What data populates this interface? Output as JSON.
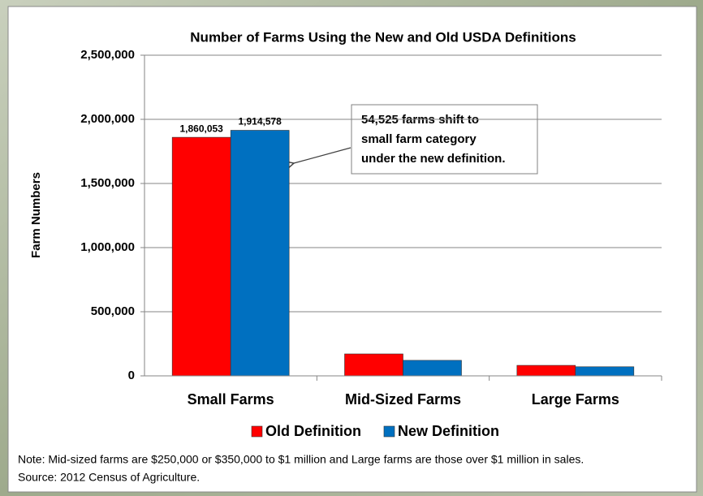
{
  "chart_data": {
    "type": "bar",
    "title": "Number of Farms Using the New and Old USDA Definitions",
    "y_label": "Farm Numbers",
    "categories": [
      "Small Farms",
      "Mid-Sized Farms",
      "Large Farms"
    ],
    "series": [
      {
        "name": "Old Definition",
        "color": "#ff0000",
        "values": [
          1860053,
          171000,
          82000
        ],
        "value_labels": [
          "1,860,053",
          null,
          null
        ]
      },
      {
        "name": "New Definition",
        "color": "#0070c0",
        "values": [
          1914578,
          121000,
          71000
        ],
        "value_labels": [
          "1,914,578",
          null,
          null
        ]
      }
    ],
    "ylim": [
      0,
      2500000
    ],
    "yticks": [
      {
        "value": 0,
        "label": "0"
      },
      {
        "value": 500000,
        "label": "500,000"
      },
      {
        "value": 1000000,
        "label": "1,000,000"
      },
      {
        "value": 1500000,
        "label": "1,500,000"
      },
      {
        "value": 2000000,
        "label": "2,000,000"
      },
      {
        "value": 2500000,
        "label": "2,500,000"
      }
    ],
    "grid": true,
    "annotation": [
      "54,525 farms shift to",
      "small farm category",
      "under the new definition."
    ],
    "notes": [
      "Note: Mid-sized farms are $250,000 or $350,000 to $1 million and Large farms are those over $1 million in sales.",
      "Source: 2012 Census of Agriculture."
    ]
  }
}
